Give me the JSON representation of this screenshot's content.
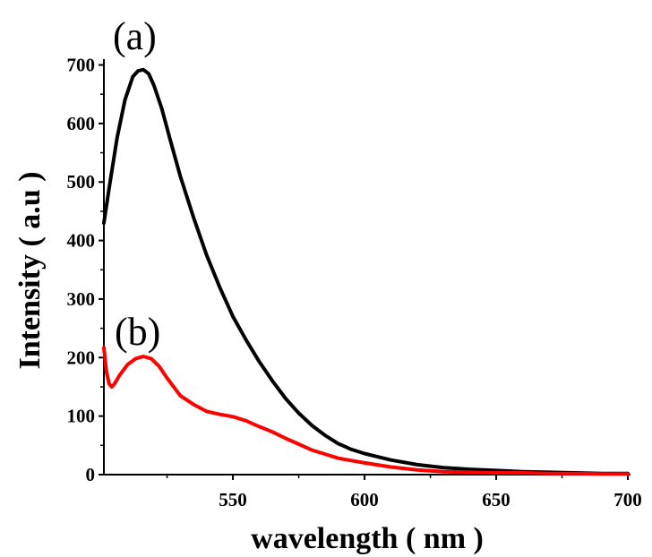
{
  "chart_data": {
    "type": "line",
    "title": "",
    "xlabel": "wavelength ( nm )",
    "ylabel": "Intensity ( a.u )",
    "xlim": [
      501,
      701
    ],
    "ylim": [
      0,
      710
    ],
    "x_ticks": [
      "550",
      "600",
      "650",
      "700"
    ],
    "y_ticks": [
      "0",
      "100",
      "200",
      "300",
      "400",
      "500",
      "600",
      "700"
    ],
    "grid": false,
    "legend": "none",
    "annotations": [
      {
        "text": "(a)",
        "near_series": 0
      },
      {
        "text": "(b)",
        "near_series": 1
      }
    ],
    "series": [
      {
        "color": "#000000",
        "x": [
          501,
          503,
          506,
          509,
          512,
          514,
          516,
          518,
          520,
          523,
          526,
          530,
          535,
          540,
          545,
          550,
          555,
          560,
          565,
          570,
          575,
          580,
          585,
          590,
          595,
          600,
          610,
          620,
          630,
          640,
          650,
          660,
          670,
          680,
          690,
          700
        ],
        "y": [
          430,
          490,
          575,
          640,
          680,
          690,
          692,
          685,
          665,
          625,
          575,
          510,
          440,
          375,
          320,
          270,
          230,
          193,
          160,
          130,
          105,
          84,
          67,
          53,
          43,
          36,
          25,
          17,
          12,
          9,
          7,
          5,
          4,
          3,
          2,
          2
        ]
      },
      {
        "color": "#ff0000",
        "x": [
          501,
          502,
          503,
          504,
          505,
          507,
          510,
          513,
          516,
          519,
          522,
          525,
          530,
          535,
          540,
          545,
          550,
          555,
          560,
          565,
          570,
          575,
          580,
          585,
          590,
          595,
          600,
          610,
          620,
          630,
          640,
          650,
          660,
          670,
          680,
          690,
          700
        ],
        "y": [
          217,
          175,
          155,
          150,
          155,
          170,
          188,
          198,
          202,
          198,
          185,
          165,
          135,
          120,
          108,
          103,
          99,
          92,
          82,
          73,
          62,
          52,
          42,
          35,
          28,
          24,
          20,
          13,
          8,
          5,
          4,
          3,
          3,
          2,
          2,
          1,
          1
        ]
      }
    ]
  }
}
